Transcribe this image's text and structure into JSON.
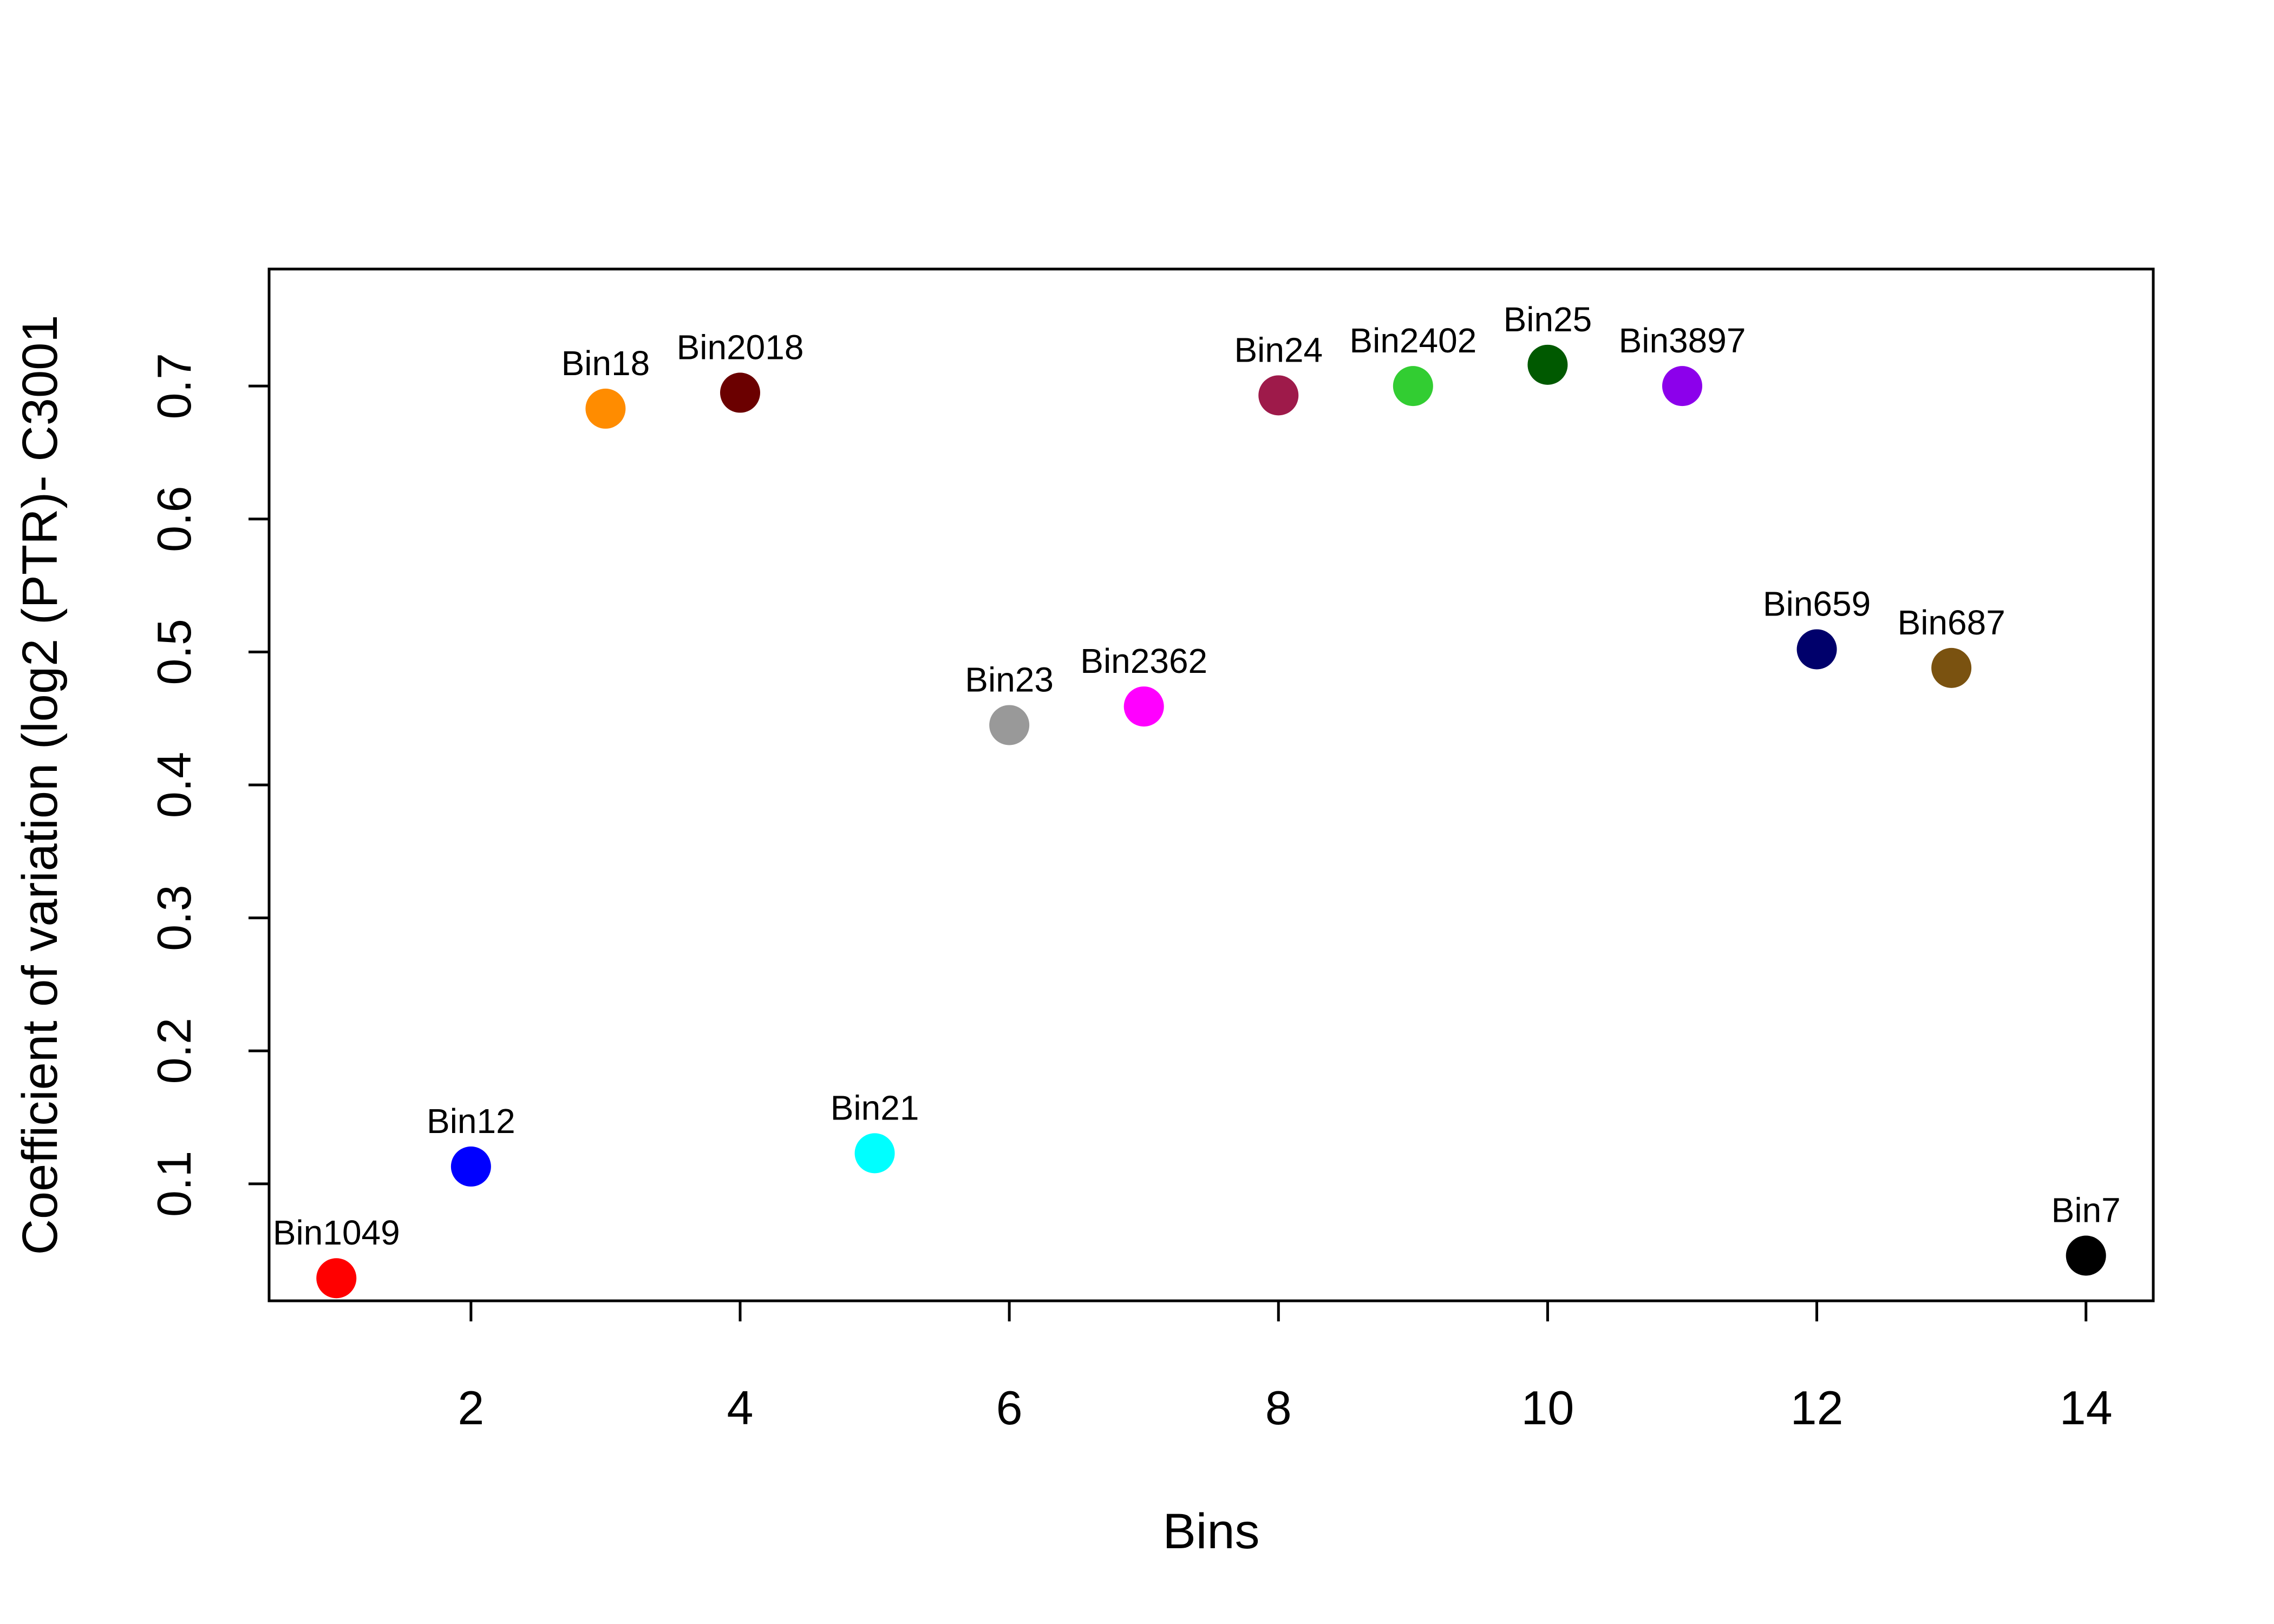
{
  "chart_data": {
    "type": "scatter",
    "title": "",
    "xlabel": "Bins",
    "ylabel": "Coefficient of variation (log2 (PTR)- C3001",
    "xlim": [
      0.5,
      14.5
    ],
    "ylim": [
      0.012,
      0.788
    ],
    "xticks": [
      2,
      4,
      6,
      8,
      10,
      12,
      14
    ],
    "yticks": [
      0.1,
      0.2,
      0.3,
      0.4,
      0.5,
      0.6,
      0.7
    ],
    "grid": false,
    "legend": "none",
    "points": [
      {
        "x": 1,
        "y": 0.029,
        "label": "Bin1049",
        "color": "#ff0000"
      },
      {
        "x": 2,
        "y": 0.113,
        "label": "Bin12",
        "color": "#0000ff"
      },
      {
        "x": 3,
        "y": 0.683,
        "label": "Bin18",
        "color": "#ff8c00"
      },
      {
        "x": 4,
        "y": 0.695,
        "label": "Bin2018",
        "color": "#6b0000"
      },
      {
        "x": 5,
        "y": 0.123,
        "label": "Bin21",
        "color": "#00ffff"
      },
      {
        "x": 6,
        "y": 0.445,
        "label": "Bin23",
        "color": "#999999"
      },
      {
        "x": 7,
        "y": 0.459,
        "label": "Bin2362",
        "color": "#ff00ff"
      },
      {
        "x": 8,
        "y": 0.693,
        "label": "Bin24",
        "color": "#9e1a4a"
      },
      {
        "x": 9,
        "y": 0.7,
        "label": "Bin2402",
        "color": "#32cd32"
      },
      {
        "x": 10,
        "y": 0.716,
        "label": "Bin25",
        "color": "#005900"
      },
      {
        "x": 11,
        "y": 0.7,
        "label": "Bin3897",
        "color": "#8c00eb"
      },
      {
        "x": 12,
        "y": 0.502,
        "label": "Bin659",
        "color": "#00006b"
      },
      {
        "x": 13,
        "y": 0.488,
        "label": "Bin687",
        "color": "#7a5210"
      },
      {
        "x": 14,
        "y": 0.046,
        "label": "Bin7",
        "color": "#000000"
      }
    ]
  }
}
